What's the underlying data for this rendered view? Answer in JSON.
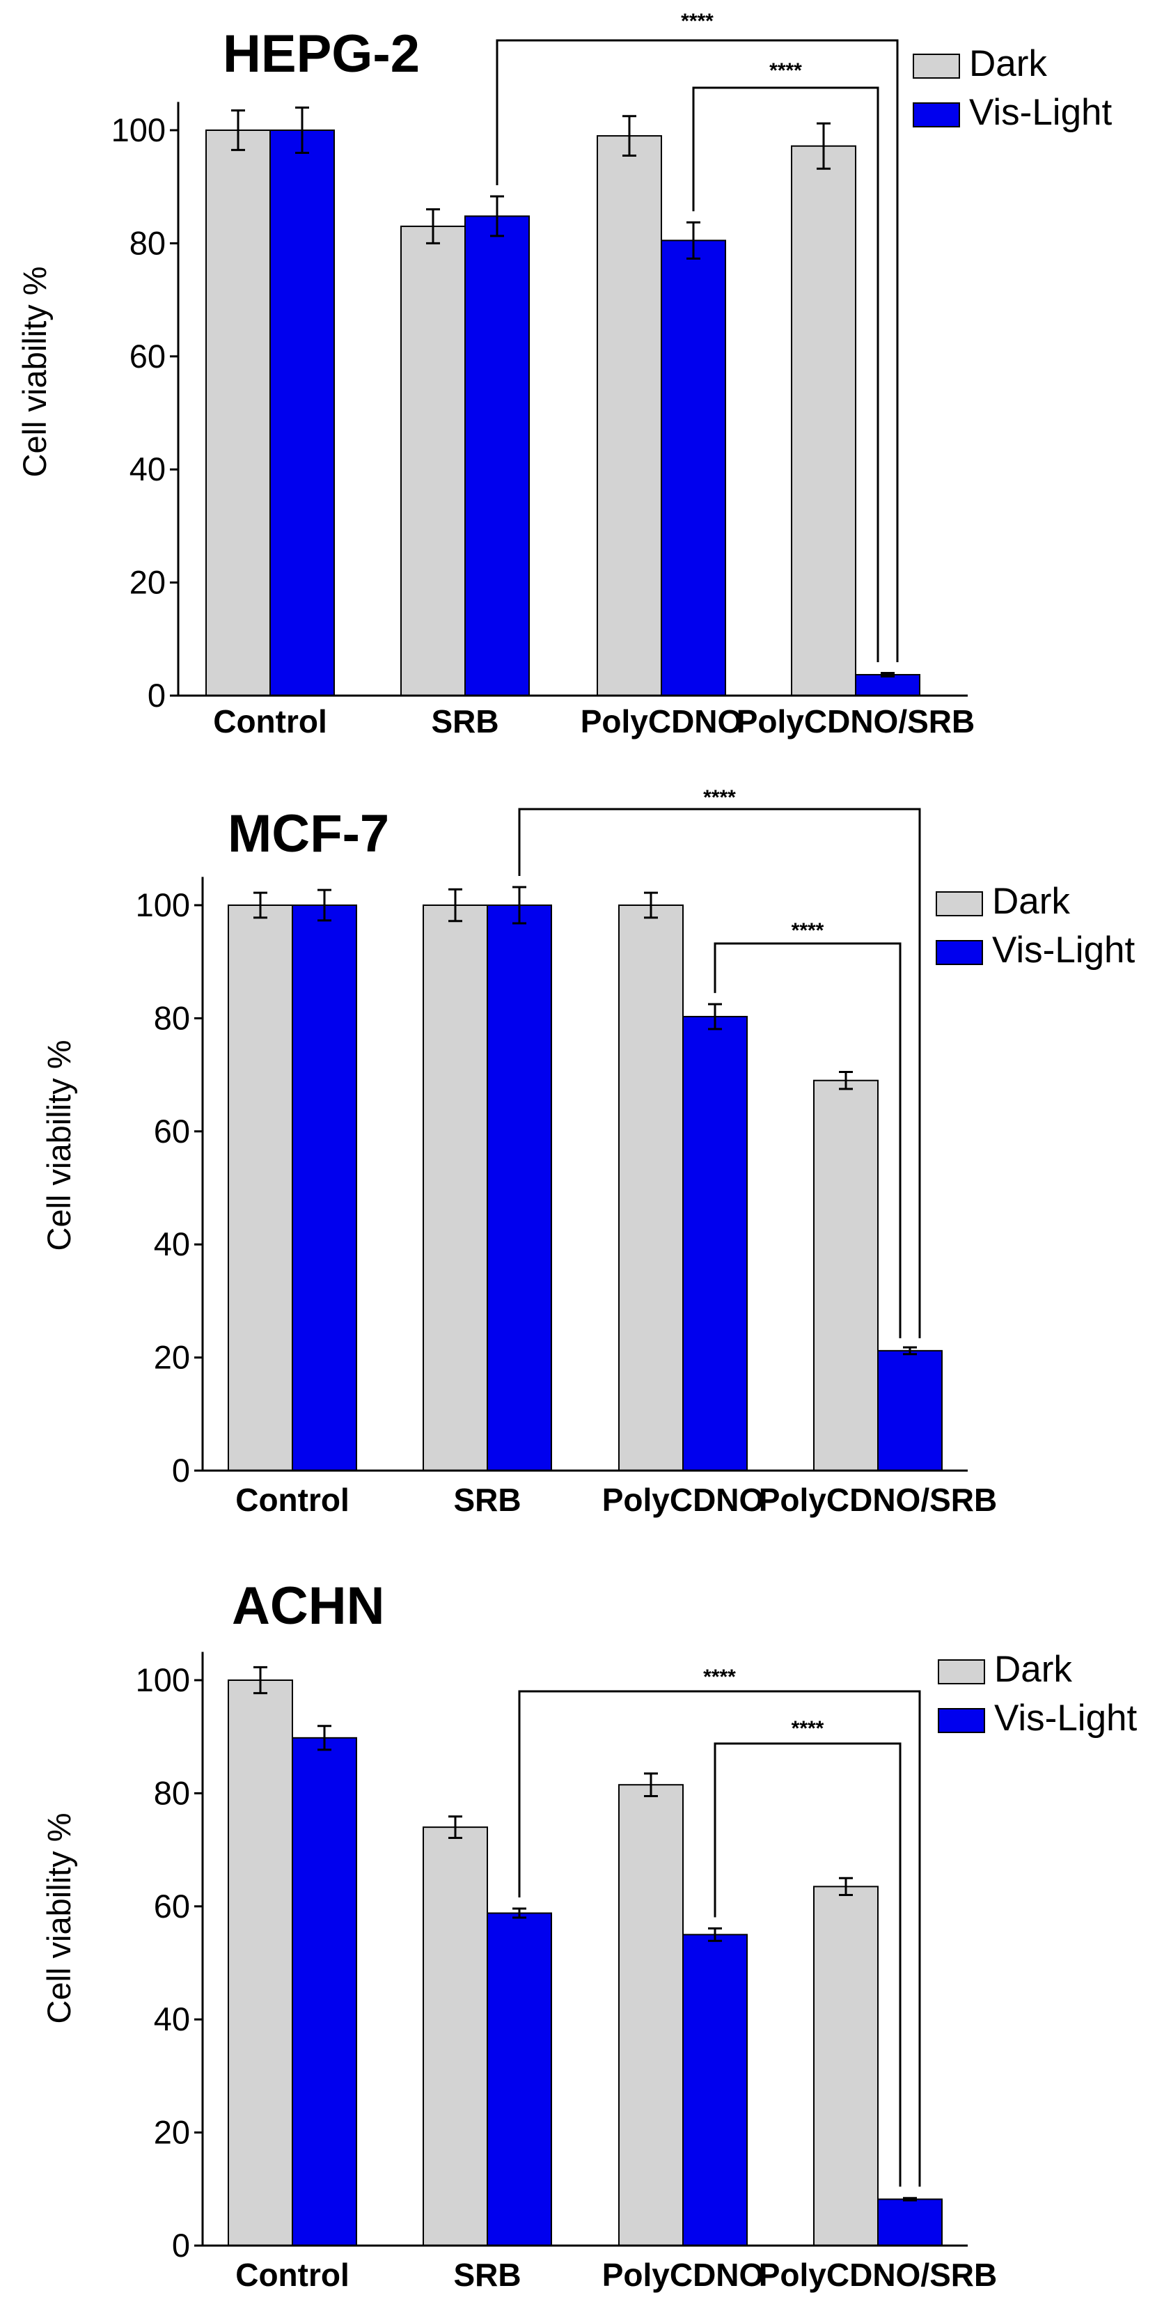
{
  "colors": {
    "dark": "#d3d3d3",
    "light": "#0000ee",
    "axis": "#000000"
  },
  "chart_data": [
    {
      "type": "bar",
      "title": "HEPG-2",
      "xlabel": "",
      "ylabel": "Cell viability %",
      "ylim": [
        0,
        105
      ],
      "yticks": [
        0,
        20,
        40,
        60,
        80,
        100
      ],
      "categories": [
        "Control",
        "SRB",
        "PolyCDNO",
        "PolyCDNO/SRB"
      ],
      "series": [
        {
          "name": "Dark",
          "values": [
            100,
            83,
            99,
            97.2
          ],
          "errors": [
            3.5,
            3,
            3.5,
            4
          ]
        },
        {
          "name": "Vis-Light",
          "values": [
            100,
            84.8,
            80.5,
            3.7
          ],
          "errors": [
            4,
            3.5,
            3.2,
            0.3
          ]
        }
      ],
      "significance": [
        {
          "label": "****",
          "from": [
            1,
            1
          ],
          "to": [
            3,
            1
          ]
        },
        {
          "label": "****",
          "from": [
            2,
            1
          ],
          "to": [
            3,
            1
          ]
        }
      ]
    },
    {
      "type": "bar",
      "title": "MCF-7",
      "xlabel": "",
      "ylabel": "Cell viability %",
      "ylim": [
        0,
        105
      ],
      "yticks": [
        0,
        20,
        40,
        60,
        80,
        100
      ],
      "categories": [
        "Control",
        "SRB",
        "PolyCDNO",
        "PolyCDNO/SRB"
      ],
      "series": [
        {
          "name": "Dark",
          "values": [
            100,
            100,
            100,
            69
          ],
          "errors": [
            2.2,
            2.8,
            2.2,
            1.5
          ]
        },
        {
          "name": "Vis-Light",
          "values": [
            100,
            100,
            80.3,
            21.2
          ],
          "errors": [
            2.7,
            3.2,
            2.2,
            0.6
          ]
        }
      ],
      "significance": [
        {
          "label": "****",
          "from": [
            1,
            1
          ],
          "to": [
            3,
            1
          ]
        },
        {
          "label": "****",
          "from": [
            2,
            1
          ],
          "to": [
            3,
            1
          ]
        }
      ]
    },
    {
      "type": "bar",
      "title": "ACHN",
      "xlabel": "",
      "ylabel": "Cell viability %",
      "ylim": [
        0,
        105
      ],
      "yticks": [
        0,
        20,
        40,
        60,
        80,
        100
      ],
      "categories": [
        "Control",
        "SRB",
        "PolyCDNO",
        "PolyCDNO/SRB"
      ],
      "series": [
        {
          "name": "Dark",
          "values": [
            100,
            74,
            81.5,
            63.5
          ],
          "errors": [
            2.3,
            1.9,
            2,
            1.5
          ]
        },
        {
          "name": "Vis-Light",
          "values": [
            89.8,
            58.8,
            55,
            8.2
          ],
          "errors": [
            2.1,
            0.8,
            1.1,
            0.2
          ]
        }
      ],
      "significance": [
        {
          "label": "****",
          "from": [
            1,
            1
          ],
          "to": [
            3,
            1
          ]
        },
        {
          "label": "****",
          "from": [
            2,
            1
          ],
          "to": [
            3,
            1
          ]
        }
      ]
    }
  ]
}
